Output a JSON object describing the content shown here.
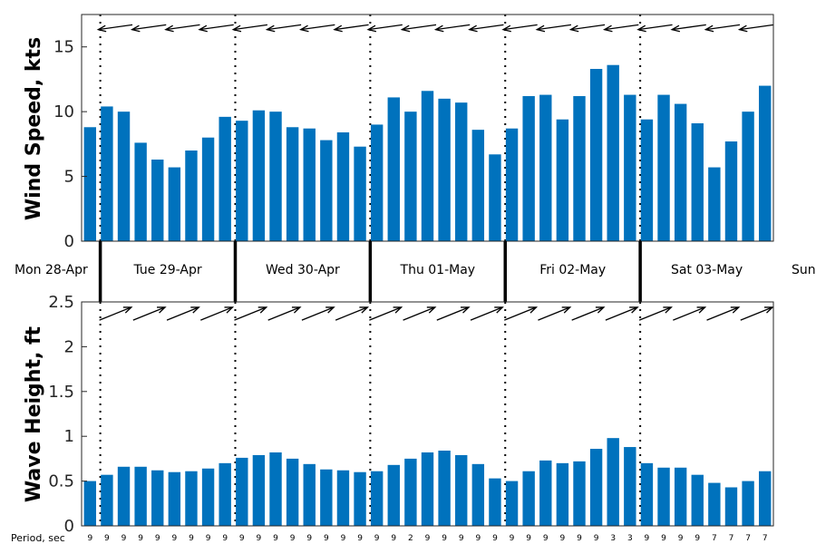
{
  "chart_data": {
    "type": "bar",
    "bar_color": "#0072BD",
    "day_labels": [
      "Mon 28-Apr",
      "Tue 29-Apr",
      "Wed 30-Apr",
      "Thu 01-May",
      "Fri 02-May",
      "Sat 03-May",
      "Sun"
    ],
    "wind": {
      "ylabel": "Wind Speed, kts",
      "ylim": [
        0,
        17.5
      ],
      "yticks": [
        "0",
        "5",
        "10",
        "15"
      ],
      "values": [
        8.8,
        10.4,
        10.0,
        7.6,
        6.3,
        5.7,
        7.0,
        8.0,
        9.6,
        9.3,
        10.1,
        10.0,
        8.8,
        8.7,
        7.8,
        8.4,
        7.3,
        9.0,
        11.1,
        10.0,
        11.6,
        11.0,
        10.7,
        8.6,
        6.7,
        8.7,
        11.2,
        11.3,
        9.4,
        11.2,
        13.3,
        13.6,
        11.3,
        9.4,
        11.3,
        10.6,
        9.1,
        5.7,
        7.7,
        10.0,
        12.0
      ]
    },
    "wave": {
      "ylabel": "Wave Height, ft",
      "ylim": [
        0,
        2.5
      ],
      "yticks": [
        "0",
        "0.5",
        "1",
        "1.5",
        "2",
        "2.5"
      ],
      "values": [
        0.5,
        0.57,
        0.66,
        0.66,
        0.62,
        0.6,
        0.61,
        0.64,
        0.7,
        0.76,
        0.79,
        0.82,
        0.75,
        0.69,
        0.63,
        0.62,
        0.6,
        0.61,
        0.68,
        0.75,
        0.82,
        0.84,
        0.79,
        0.69,
        0.53,
        0.5,
        0.61,
        0.73,
        0.7,
        0.72,
        0.86,
        0.98,
        0.88,
        0.7,
        0.65,
        0.65,
        0.57,
        0.48,
        0.43,
        0.5,
        0.61
      ]
    },
    "period_label": "Period, sec",
    "periods": [
      "9",
      "9",
      "9",
      "9",
      "9",
      "9",
      "9",
      "9",
      "9",
      "9",
      "9",
      "9",
      "9",
      "9",
      "9",
      "9",
      "9",
      "9",
      "9",
      "2",
      "9",
      "9",
      "9",
      "9",
      "9",
      "9",
      "9",
      "9",
      "9",
      "9",
      "9",
      "3",
      "3",
      "9",
      "9",
      "9",
      "9",
      "7",
      "7",
      "7",
      "7"
    ]
  }
}
